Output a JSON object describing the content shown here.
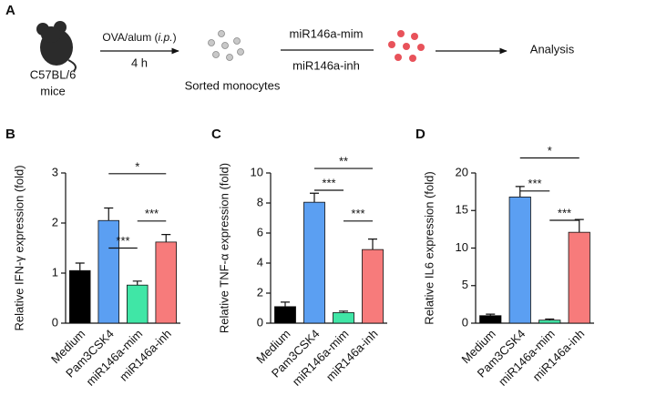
{
  "schematic": {
    "panel": "A",
    "strain": "C57BL/6",
    "strain_note": "mice",
    "treatment_parts": [
      "OVA/alum (",
      "i.p.",
      ")"
    ],
    "time": "4 h",
    "cells": "Sorted monocytes",
    "mimic": "miR146a-mim",
    "inhibitor": "miR146a-inh",
    "readout": "Analysis"
  },
  "chart_data": [
    {
      "type": "bar",
      "panel": "B",
      "ylabel": "Relative IFN-γ expression (fold)",
      "categories": [
        "Medium",
        "Pam3CSK4",
        "miR146a-mim",
        "miR146a-inh"
      ],
      "values": [
        1.05,
        2.05,
        0.76,
        1.62
      ],
      "errors": [
        0.15,
        0.25,
        0.08,
        0.15
      ],
      "colors": [
        "#000000",
        "#5b9ff2",
        "#40e6a6",
        "#f77b7b"
      ],
      "ylim": [
        0,
        3
      ],
      "yticks": [
        0,
        1,
        2,
        3
      ],
      "annotations": [
        {
          "label": "*",
          "between": [
            "Pam3CSK4",
            "miR146a-inh"
          ]
        },
        {
          "label": "***",
          "between": [
            "Pam3CSK4",
            "miR146a-mim"
          ]
        },
        {
          "label": "***",
          "between": [
            "miR146a-mim",
            "miR146a-inh"
          ]
        }
      ]
    },
    {
      "type": "bar",
      "panel": "C",
      "ylabel": "Relative TNF-α expression (fold)",
      "categories": [
        "Medium",
        "Pam3CSK4",
        "miR146a-mim",
        "miR146a-inh"
      ],
      "values": [
        1.1,
        8.05,
        0.7,
        4.9
      ],
      "errors": [
        0.3,
        0.6,
        0.1,
        0.7
      ],
      "colors": [
        "#000000",
        "#5b9ff2",
        "#40e6a6",
        "#f77b7b"
      ],
      "ylim": [
        0,
        10
      ],
      "yticks": [
        0,
        2,
        4,
        6,
        8,
        10
      ],
      "annotations": [
        {
          "label": "**",
          "between": [
            "Pam3CSK4",
            "miR146a-inh"
          ]
        },
        {
          "label": "***",
          "between": [
            "Pam3CSK4",
            "miR146a-mim"
          ]
        },
        {
          "label": "***",
          "between": [
            "miR146a-mim",
            "miR146a-inh"
          ]
        }
      ]
    },
    {
      "type": "bar",
      "panel": "D",
      "ylabel": "Relative IL6 expression (fold)",
      "categories": [
        "Medium",
        "Pam3CSK4",
        "miR146a-mim",
        "miR146a-inh"
      ],
      "values": [
        1.0,
        16.8,
        0.4,
        12.1
      ],
      "errors": [
        0.2,
        1.4,
        0.15,
        1.7
      ],
      "colors": [
        "#000000",
        "#5b9ff2",
        "#40e6a6",
        "#f77b7b"
      ],
      "ylim": [
        0,
        20
      ],
      "yticks": [
        0,
        5,
        10,
        15,
        20
      ],
      "annotations": [
        {
          "label": "*",
          "between": [
            "Pam3CSK4",
            "miR146a-inh"
          ]
        },
        {
          "label": "***",
          "between": [
            "Pam3CSK4",
            "miR146a-mim"
          ]
        },
        {
          "label": "***",
          "between": [
            "miR146a-mim",
            "miR146a-inh"
          ]
        }
      ]
    }
  ]
}
